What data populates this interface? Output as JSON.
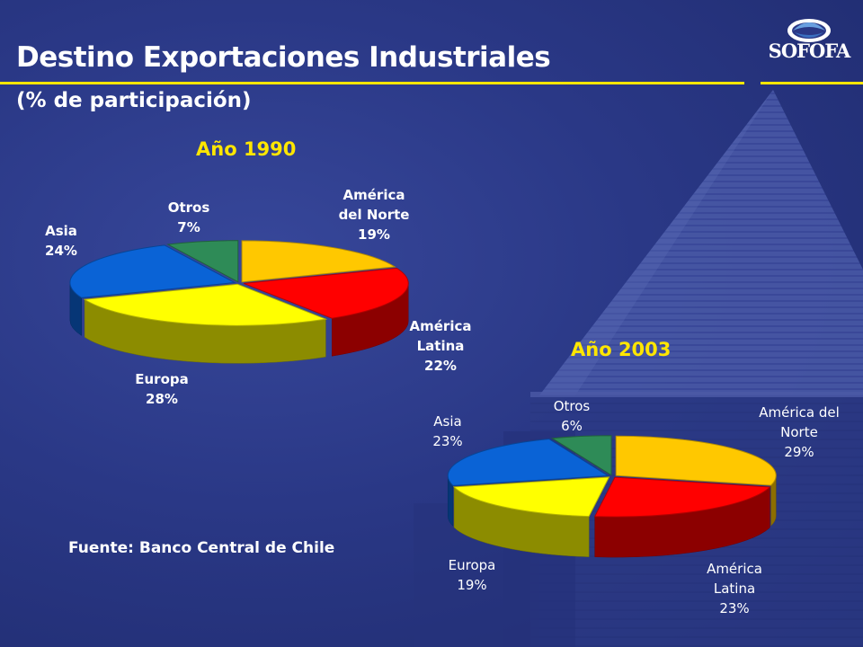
{
  "header": {
    "title": "Destino Exportaciones Industriales",
    "subtitle": "(% de participación)",
    "logo_text": "SOFOFA"
  },
  "colors": {
    "title_rule": "#ffe600",
    "year_label": "#ffe600",
    "text": "#ffffff"
  },
  "source": "Fuente: Banco Central de Chile",
  "chart_data": [
    {
      "type": "pie",
      "title": "Año 1990",
      "slices": [
        {
          "name": "América del Norte",
          "value": 19,
          "label": "19%",
          "color": "#ffc800"
        },
        {
          "name": "América Latina",
          "value": 22,
          "label": "22%",
          "color": "#ff0000"
        },
        {
          "name": "Europa",
          "value": 28,
          "label": "28%",
          "color": "#ffff00"
        },
        {
          "name": "Asia",
          "value": 24,
          "label": "24%",
          "color": "#0a63d6"
        },
        {
          "name": "Otros",
          "value": 7,
          "label": "7%",
          "color": "#2e8b57"
        }
      ]
    },
    {
      "type": "pie",
      "title": "Año 2003",
      "slices": [
        {
          "name": "América del Norte",
          "value": 29,
          "label": "29%",
          "color": "#ffc800"
        },
        {
          "name": "América Latina",
          "value": 23,
          "label": "23%",
          "color": "#ff0000"
        },
        {
          "name": "Europa",
          "value": 19,
          "label": "19%",
          "color": "#ffff00"
        },
        {
          "name": "Asia",
          "value": 23,
          "label": "23%",
          "color": "#0a63d6"
        },
        {
          "name": "Otros",
          "value": 6,
          "label": "6%",
          "color": "#2e8b57"
        }
      ]
    }
  ]
}
